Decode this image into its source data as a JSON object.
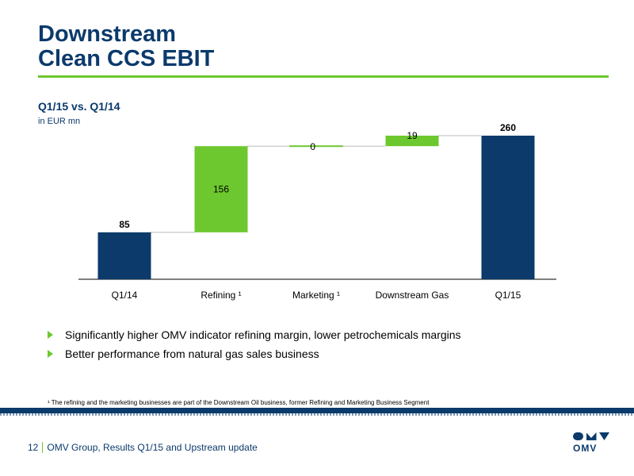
{
  "slide": {
    "title_line1": "Downstream",
    "title_line2": "Clean CCS EBIT"
  },
  "chart_data": {
    "type": "bar",
    "subtype": "waterfall",
    "title": "Q1/15 vs. Q1/14",
    "ylabel": "in EUR mn",
    "categories": [
      "Q1/14",
      "Refining ¹",
      "Marketing ¹",
      "Downstream Gas",
      "Q1/15"
    ],
    "values": [
      85,
      156,
      0,
      19,
      260
    ],
    "labels": [
      "85",
      "156",
      "0",
      "19",
      "260"
    ],
    "kinds": [
      "total",
      "delta",
      "delta",
      "delta",
      "total"
    ],
    "colors": {
      "total": "#0b3a6b",
      "delta": "#6cc82e"
    },
    "ylim": [
      0,
      260
    ],
    "grid": false,
    "connectors": true
  },
  "bullets": [
    "Significantly higher OMV indicator refining margin, lower petrochemicals margins",
    "Better performance from natural gas sales business"
  ],
  "footnote": "¹ The refining and the marketing businesses are part of the Downstream Oil business, former Refining and Marketing Business Segment",
  "footer": {
    "page_number": "12",
    "text": "OMV Group, Results Q1/15 and Upstream update"
  },
  "logo": {
    "text": "OMV"
  },
  "colors": {
    "navy": "#0b3a6b",
    "green": "#6cc82e"
  }
}
